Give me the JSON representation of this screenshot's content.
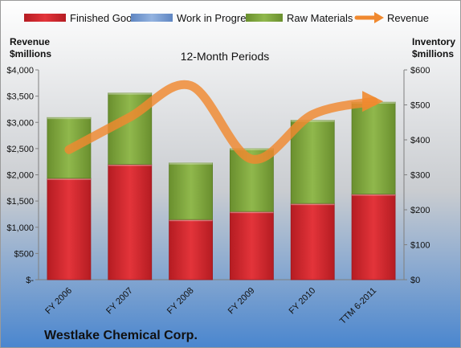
{
  "company": "Westlake Chemical Corp.",
  "chart_data": {
    "type": "bar",
    "title": "12-Month Periods",
    "categories": [
      "FY 2006",
      "FY 2007",
      "FY 2008",
      "FY 2009",
      "FY 2010",
      "TTM 6-2011"
    ],
    "left_axis": {
      "label_lines": [
        "Revenue",
        "$millions"
      ],
      "ylim": [
        0,
        4000
      ],
      "ticks": [
        0,
        500,
        1000,
        1500,
        2000,
        2500,
        3000,
        3500,
        4000
      ],
      "tick_labels": [
        "$-",
        "$500",
        "$1,000",
        "$1,500",
        "$2,000",
        "$2,500",
        "$3,000",
        "$3,500",
        "$4,000"
      ]
    },
    "right_axis": {
      "label_lines": [
        "Inventory",
        "$millions"
      ],
      "ylim": [
        0,
        600
      ],
      "ticks": [
        0,
        100,
        200,
        300,
        400,
        500,
        600
      ],
      "tick_labels": [
        "$0",
        "$100",
        "$200",
        "$300",
        "$400",
        "$500",
        "$600"
      ]
    },
    "series": [
      {
        "name": "Finished Goods",
        "type": "bar",
        "axis": "right",
        "color": "#d9262c",
        "values": [
          290,
          330,
          172,
          195,
          218,
          245
        ]
      },
      {
        "name": "Work in Progress",
        "type": "bar",
        "axis": "right",
        "color": "#7aa0d6",
        "values": [
          0,
          0,
          0,
          0,
          0,
          0
        ]
      },
      {
        "name": "Raw Materials",
        "type": "bar",
        "axis": "right",
        "color": "#7da23a",
        "values": [
          174,
          204,
          162,
          180,
          238,
          263
        ]
      },
      {
        "name": "Revenue",
        "type": "line",
        "axis": "left",
        "color": "#f0892f",
        "values": [
          2480,
          3100,
          3700,
          2300,
          3150,
          3400
        ]
      }
    ],
    "legend_position": "top",
    "grid": false
  }
}
